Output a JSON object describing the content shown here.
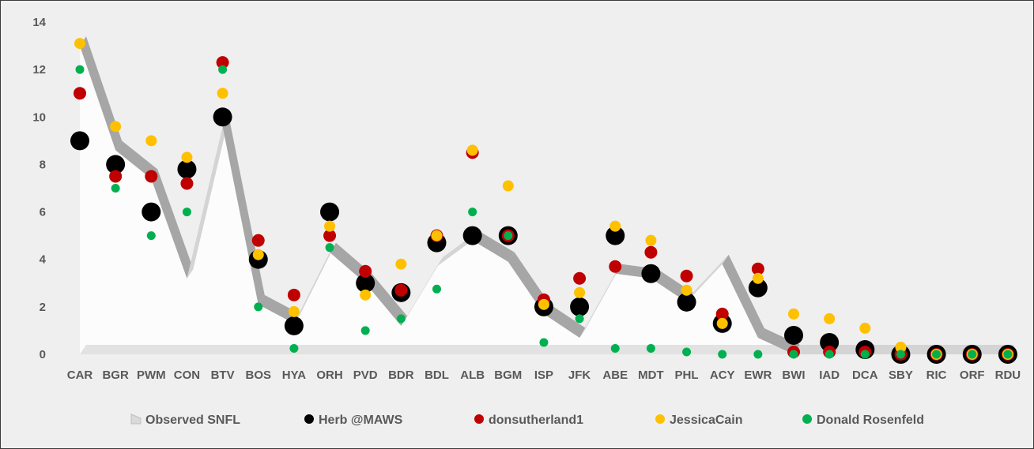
{
  "chart_data": {
    "type": "scatter",
    "title": "",
    "xlabel": "",
    "ylabel": "",
    "ylim": [
      0,
      14
    ],
    "yticks": [
      0,
      2,
      4,
      6,
      8,
      10,
      12,
      14
    ],
    "grid": "none",
    "legend_position": "bottom",
    "categories": [
      "CAR",
      "BGR",
      "PWM",
      "CON",
      "BTV",
      "BOS",
      "HYA",
      "ORH",
      "PVD",
      "BDR",
      "BDL",
      "ALB",
      "BGM",
      "ISP",
      "JFK",
      "ABE",
      "MDT",
      "PHL",
      "ACY",
      "EWR",
      "BWI",
      "IAD",
      "DCA",
      "SBY",
      "RIC",
      "ORF",
      "RDU"
    ],
    "series": [
      {
        "name": "Observed SNFL",
        "kind": "area",
        "color": "#bfbfbf",
        "values": [
          13.0,
          8.6,
          7.4,
          3.2,
          9.6,
          2.1,
          1.3,
          4.3,
          3.0,
          1.2,
          3.7,
          4.8,
          3.9,
          1.7,
          0.7,
          3.4,
          3.2,
          2.2,
          3.8,
          0.7,
          0,
          0,
          0,
          0,
          0,
          0,
          0
        ]
      },
      {
        "name": "Herb @MAWS",
        "kind": "marker",
        "color": "#000000",
        "values": [
          9.0,
          8.0,
          6.0,
          7.8,
          10.0,
          4.0,
          1.2,
          6.0,
          3.0,
          2.6,
          4.7,
          5.0,
          5.0,
          2.0,
          2.0,
          5.0,
          3.4,
          2.2,
          1.3,
          2.8,
          0.8,
          0.5,
          0.2,
          0,
          0,
          0,
          0
        ]
      },
      {
        "name": "donsutherland1",
        "kind": "marker",
        "color": "#c00000",
        "values": [
          11.0,
          7.5,
          7.5,
          7.2,
          12.3,
          4.8,
          2.5,
          5.0,
          3.5,
          2.7,
          5.0,
          8.5,
          5.0,
          2.3,
          3.2,
          3.7,
          4.3,
          3.3,
          1.7,
          3.6,
          0.1,
          0.1,
          0.1,
          0,
          0,
          0,
          0
        ]
      },
      {
        "name": "JessicaCain",
        "kind": "marker",
        "color": "#ffc000",
        "values": [
          13.1,
          9.6,
          9.0,
          8.3,
          11.0,
          4.2,
          1.8,
          5.4,
          2.5,
          3.8,
          5.0,
          8.6,
          7.1,
          2.1,
          2.6,
          5.4,
          4.8,
          2.7,
          1.3,
          3.2,
          1.7,
          1.5,
          1.1,
          0.3,
          0,
          0,
          0
        ]
      },
      {
        "name": "Donald Rosenfeld",
        "kind": "marker",
        "color": "#00b050",
        "values": [
          12.0,
          7.0,
          5.0,
          6.0,
          12.0,
          2.0,
          0.25,
          4.5,
          1.0,
          1.5,
          2.75,
          6.0,
          5.0,
          0.5,
          1.5,
          0.25,
          0.25,
          0.1,
          0,
          0,
          0,
          0,
          0,
          0,
          0,
          0,
          0
        ]
      }
    ]
  }
}
